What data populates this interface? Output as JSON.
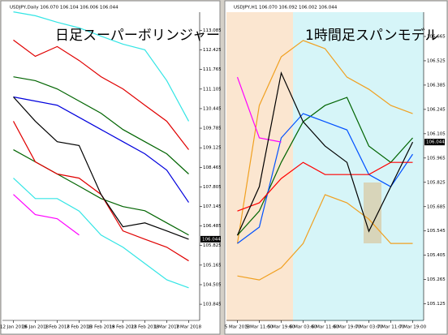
{
  "chart_data": [
    {
      "type": "line",
      "title": "日足スーパーボリンジャー",
      "subtitle": "USDJPY,Daily 106.070 106.104 106.006 106.044",
      "last_price": "106.044",
      "categories": [
        "12 Jan 2018",
        "26 Jan 2018",
        "1 Feb 2018",
        "7 Feb 2018",
        "13 Feb 2018",
        "19 Feb 2018",
        "23 Feb 2018",
        "1 Mar 2018",
        "7 Mar 2018"
      ],
      "series": [
        {
          "color": "#33e5e5",
          "values": [
            113.71,
            113.58,
            113.36,
            113.17,
            112.89,
            112.62,
            112.43,
            111.39,
            110.02
          ]
        },
        {
          "color": "#e00000",
          "values": [
            112.76,
            112.21,
            112.54,
            112.07,
            111.52,
            111.11,
            110.56,
            110.02,
            109.06
          ]
        },
        {
          "color": "#006400",
          "values": [
            111.52,
            111.39,
            111.11,
            110.7,
            110.29,
            109.74,
            109.33,
            108.92,
            108.24
          ]
        },
        {
          "color": "#0000dd",
          "values": [
            110.84,
            110.7,
            110.56,
            110.15,
            109.74,
            109.33,
            108.92,
            108.37,
            107.28
          ]
        },
        {
          "color": "#006400",
          "values": [
            109.06,
            108.65,
            108.24,
            107.83,
            107.41,
            107.14,
            107.0,
            106.59,
            106.18
          ]
        },
        {
          "color": "#e00000",
          "values": [
            110.02,
            108.65,
            108.24,
            108.1,
            107.55,
            106.32,
            106.04,
            105.77,
            105.31
          ]
        },
        {
          "color": "#33e5e5",
          "values": [
            108.1,
            107.41,
            107.41,
            106.99,
            106.18,
            105.77,
            105.22,
            104.67,
            104.4
          ]
        },
        {
          "color": "#ff00ff",
          "values": [
            107.55,
            106.87,
            106.73,
            106.18,
            null,
            null,
            null,
            null,
            null
          ]
        },
        {
          "color": "#000000",
          "values": [
            110.84,
            110.02,
            109.33,
            109.2,
            107.55,
            106.46,
            106.59,
            106.32,
            106.04
          ]
        }
      ],
      "ylim": [
        103.3,
        113.7
      ],
      "yticks": [
        113.085,
        112.425,
        111.765,
        111.105,
        110.445,
        109.785,
        109.125,
        108.465,
        107.805,
        107.145,
        106.485,
        105.825,
        105.165,
        104.505,
        103.845
      ]
    },
    {
      "type": "line",
      "title": "1時間足スパンモデル",
      "subtitle": "USDJPY,H1 106.070 106.092 106.002 106.044",
      "last_price": "106.044",
      "categories": [
        "5 Mar 2018",
        "5 Mar 11:00",
        "5 Mar 19:00",
        "6 Mar 03:00",
        "6 Mar 11:00",
        "6 Mar 19:00",
        "7 Mar 03:00",
        "7 Mar 11:00",
        "7 Mar 19:00"
      ],
      "series": [
        {
          "color": "#f0a020",
          "values": [
            105.473,
            106.268,
            106.548,
            106.642,
            106.595,
            106.431,
            106.361,
            106.268,
            106.221
          ]
        },
        {
          "color": "#f0a020",
          "values": [
            105.286,
            105.263,
            105.333,
            105.473,
            105.754,
            105.707,
            105.613,
            105.473,
            105.473
          ]
        },
        {
          "color": "#006400",
          "values": [
            105.52,
            105.66,
            105.94,
            106.174,
            106.268,
            106.314,
            106.034,
            105.94,
            106.081
          ]
        },
        {
          "color": "#0050ff",
          "values": [
            105.473,
            105.567,
            106.081,
            106.221,
            106.174,
            106.127,
            105.87,
            105.8,
            105.987
          ]
        },
        {
          "color": "#ff0000",
          "values": [
            105.66,
            105.707,
            105.847,
            105.94,
            105.87,
            105.87,
            105.87,
            105.94,
            105.94
          ]
        },
        {
          "color": "#ff00ff",
          "values": [
            106.431,
            106.081,
            106.057,
            null,
            null,
            106.15,
            null,
            null,
            null
          ]
        },
        {
          "color": "#000000",
          "values": [
            105.52,
            105.8,
            106.455,
            106.174,
            106.034,
            105.94,
            105.543,
            105.8,
            106.057
          ]
        }
      ],
      "ylim": [
        105.03,
        106.805
      ],
      "yticks": [
        106.665,
        106.525,
        106.385,
        106.245,
        106.105,
        105.965,
        105.825,
        105.685,
        105.545,
        105.405,
        105.265,
        105.125
      ]
    }
  ]
}
